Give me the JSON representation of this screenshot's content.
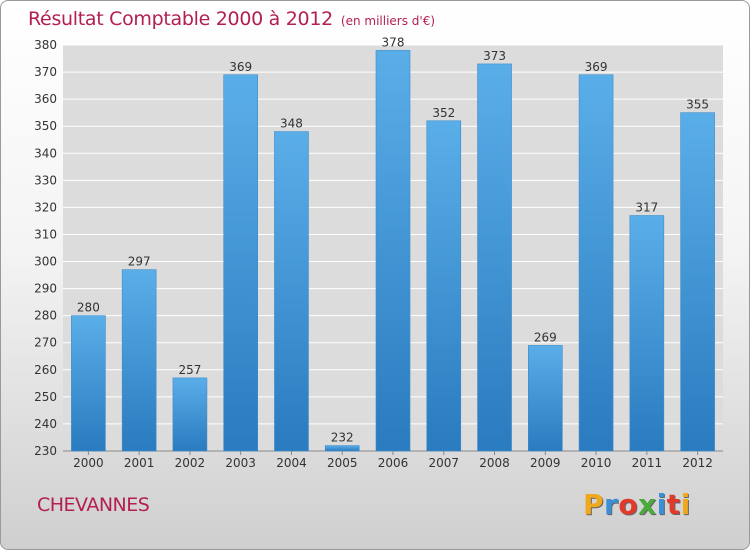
{
  "header": {
    "title": "Résultat Comptable 2000 à 2012",
    "subtitle": "(en milliers d'€)"
  },
  "footer": {
    "town": "CHEVANNES",
    "logo_text": "Proxiti",
    "logo_colors": [
      "#f0a81c",
      "#3a8fd6",
      "#e23a2a",
      "#4aaa3c",
      "#3a8fd6",
      "#e23a2a",
      "#f0a81c"
    ]
  },
  "colors": {
    "bar_light": "#5aaee8",
    "bar_dark": "#2a7bbf",
    "title": "#b3204f",
    "grid": "#ffffff"
  },
  "chart_data": {
    "type": "bar",
    "categories": [
      "2000",
      "2001",
      "2002",
      "2003",
      "2004",
      "2005",
      "2006",
      "2007",
      "2008",
      "2009",
      "2010",
      "2011",
      "2012"
    ],
    "values": [
      280,
      297,
      257,
      369,
      348,
      232,
      378,
      352,
      373,
      269,
      369,
      317,
      355
    ],
    "ylim": [
      230,
      380
    ],
    "yticks": [
      230,
      240,
      250,
      260,
      270,
      280,
      290,
      300,
      310,
      320,
      330,
      340,
      350,
      360,
      370,
      380
    ],
    "grid": true
  }
}
